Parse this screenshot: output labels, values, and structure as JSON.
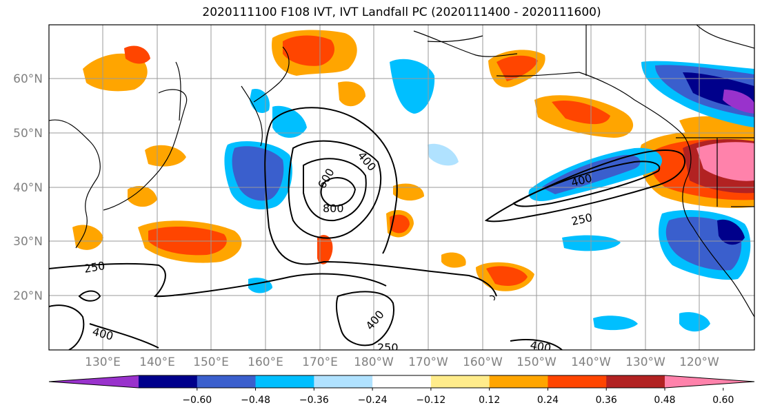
{
  "title": "2020111100 F108 IVT, IVT Landfall PC (2020111400 - 2020111600)",
  "lat_labels": [
    "60°N",
    "50°N",
    "40°N",
    "30°N",
    "20°N"
  ],
  "lon_labels": [
    "130°E",
    "140°E",
    "150°E",
    "160°E",
    "170°E",
    "180°W",
    "170°W",
    "160°W",
    "150°W",
    "140°W",
    "130°W",
    "120°W"
  ],
  "contour_labels": {
    "c800": "800",
    "c600": "600",
    "c400a": "400",
    "c400b": "400",
    "c400c": "400",
    "c400d": "400",
    "c400e": "400",
    "c250a": "250",
    "c250b": "250",
    "c250c": "250"
  },
  "colorbar": {
    "colors": [
      "#9932cc",
      "#00008b",
      "#3a5fcd",
      "#00bfff",
      "#b0e2ff",
      "#ffffff",
      "#ffec8b",
      "#ffa500",
      "#ff4500",
      "#b22222",
      "#ff82ab"
    ],
    "tick_labels": [
      "−0.60",
      "−0.48",
      "−0.36",
      "−0.24",
      "−0.12",
      "0.12",
      "0.24",
      "0.36",
      "0.48",
      "0.60"
    ]
  }
}
